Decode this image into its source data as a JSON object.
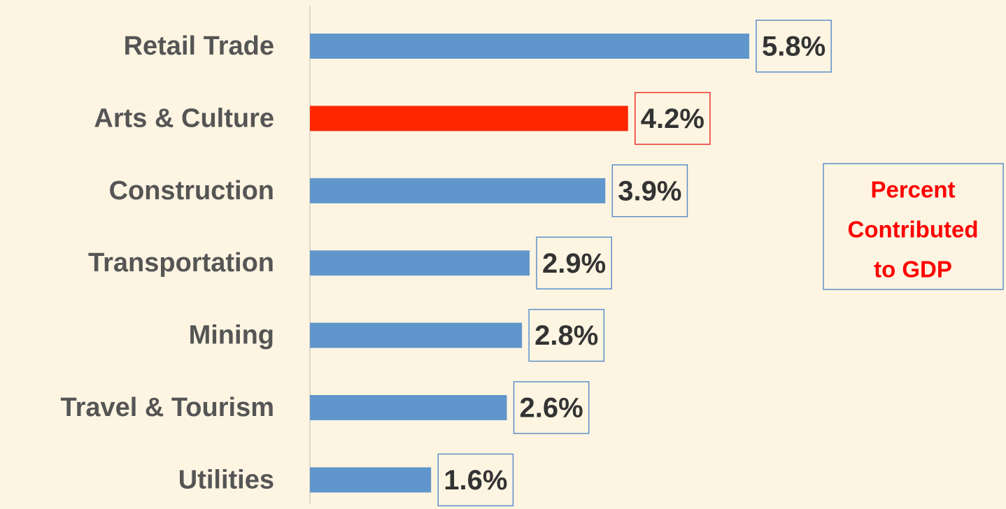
{
  "chart_data": {
    "type": "bar",
    "orientation": "horizontal",
    "categories": [
      "Retail Trade",
      "Arts & Culture",
      "Construction",
      "Transportation",
      "Mining",
      "Travel & Tourism",
      "Utilities"
    ],
    "values": [
      5.8,
      4.2,
      3.9,
      2.9,
      2.8,
      2.6,
      1.6
    ],
    "value_labels": [
      "5.8%",
      "4.2%",
      "3.9%",
      "2.9%",
      "2.8%",
      "2.6%",
      "1.6%"
    ],
    "colors": [
      "#6096cb",
      "#ff2600",
      "#6096cb",
      "#6096cb",
      "#6096cb",
      "#6096cb",
      "#6096cb"
    ],
    "annotation": [
      "Percent",
      "Contributed",
      "to GDP"
    ]
  }
}
